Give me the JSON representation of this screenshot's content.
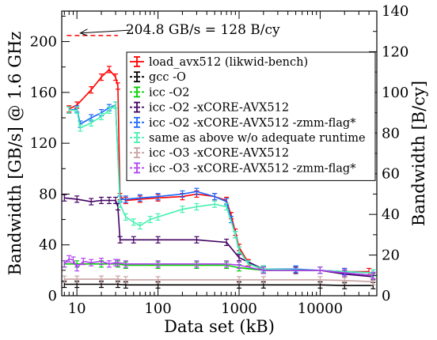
{
  "chart_data": {
    "type": "line",
    "xlabel": "Data set (kB)",
    "ylabel_left": "Bandwidth [GB/s] @ 1.6 GHz",
    "ylabel_right": "Bandwidth [B/cy]",
    "x_scale": "log",
    "xlim": [
      6.5,
      50000
    ],
    "ylim_left": [
      0,
      224
    ],
    "ylim_right": [
      0,
      140
    ],
    "x_ticks": [
      10,
      100,
      1000,
      10000
    ],
    "x_tick_labels": [
      "10",
      "100",
      "1000",
      "10000"
    ],
    "y_left_ticks": [
      0,
      40,
      80,
      120,
      160,
      200
    ],
    "y_left_tick_labels": [
      "0",
      "40",
      "80",
      "120",
      "160",
      "200"
    ],
    "y_right_ticks": [
      0,
      20,
      40,
      60,
      80,
      100,
      120,
      140
    ],
    "y_right_tick_labels": [
      "0",
      "20",
      "40",
      "60",
      "80",
      "100",
      "120",
      "140"
    ],
    "grid": false,
    "legend_position": "top-right",
    "annotation": {
      "text": "204.8 GB/s = 128 B/cy",
      "value": 204.8,
      "x_from": 7.5,
      "x_to": 32,
      "arrow_to": [
        11,
        204.8
      ]
    },
    "series": [
      {
        "name": "load_avx512 (likwid-bench)",
        "color": "#ff0000",
        "marker": "errorbar",
        "x": [
          8,
          10,
          15,
          20,
          25,
          30,
          32,
          34,
          40,
          60,
          100,
          200,
          300,
          500,
          700,
          800,
          900,
          1000,
          1300,
          2000,
          5000,
          10000,
          20000,
          40000
        ],
        "y": [
          147,
          150,
          162,
          172,
          178,
          172,
          165,
          78,
          75,
          76,
          77,
          78,
          80,
          78,
          75,
          63,
          50,
          38,
          26,
          20,
          20,
          20,
          19,
          19
        ]
      },
      {
        "name": "gcc -O",
        "color": "#000000",
        "marker": "errorbar",
        "x": [
          7,
          10,
          20,
          32,
          40,
          100,
          1000,
          2000,
          10000,
          20000,
          45000
        ],
        "y": [
          9,
          9,
          9,
          9,
          8.5,
          8.5,
          8.5,
          8.5,
          8.5,
          8,
          8
        ]
      },
      {
        "name": "icc -O2",
        "color": "#00cc00",
        "marker": "errorbar",
        "x": [
          7,
          10,
          20,
          32,
          40,
          100,
          300,
          700,
          1000,
          2000,
          10000,
          20000,
          45000
        ],
        "y": [
          25,
          25,
          25,
          25,
          24,
          24,
          24,
          24,
          22,
          20,
          20,
          18,
          16
        ]
      },
      {
        "name": "icc -O2 -xCORE-AVX512",
        "color": "#400060",
        "marker": "errorbar",
        "x": [
          7,
          10,
          15,
          20,
          25,
          30,
          32,
          34,
          50,
          100,
          300,
          700,
          1000,
          2000,
          5000,
          10000,
          20000,
          45000
        ],
        "y": [
          77,
          76,
          74,
          75,
          75,
          75,
          70,
          44,
          44,
          44,
          44,
          42,
          30,
          21,
          20,
          20,
          17,
          15
        ]
      },
      {
        "name": "icc -O2 -xCORE-AVX512 -zmm-flag*",
        "color": "#1a66ff",
        "marker": "errorbar",
        "x": [
          8,
          10,
          11,
          15,
          20,
          25,
          30,
          34,
          40,
          60,
          100,
          200,
          300,
          500,
          700,
          800,
          900,
          1000,
          1300,
          2000,
          5000,
          10000,
          20000,
          45000
        ],
        "y": [
          146,
          147,
          135,
          140,
          144,
          148,
          150,
          76,
          76,
          77,
          78,
          80,
          82,
          78,
          74,
          60,
          48,
          36,
          25,
          21,
          21,
          20,
          19,
          18
        ]
      },
      {
        "name": "same as above w/o adequate runtime",
        "color": "#44f0b0",
        "marker": "errorbar",
        "x": [
          8,
          10,
          11,
          15,
          20,
          25,
          30,
          34,
          40,
          50,
          60,
          80,
          100,
          200,
          300,
          500,
          700,
          900,
          1000,
          1300,
          2000,
          10000,
          45000
        ],
        "y": [
          146,
          146,
          132,
          136,
          141,
          146,
          150,
          72,
          62,
          58,
          55,
          60,
          62,
          68,
          70,
          72,
          70,
          48,
          36,
          25,
          21,
          20,
          18
        ]
      },
      {
        "name": "icc -O3 -xCORE-AVX512",
        "color": "#c8a0a0",
        "marker": "errorbar",
        "x": [
          7,
          10,
          20,
          32,
          40,
          100,
          1000,
          2000,
          10000,
          20000,
          45000
        ],
        "y": [
          13,
          13,
          13,
          13,
          12.5,
          12.5,
          12.5,
          12.5,
          12.5,
          12,
          11
        ]
      },
      {
        "name": "icc -O3 -xCORE-AVX512 -zmm-flag*",
        "color": "#b040f0",
        "marker": "errorbar",
        "x": [
          7,
          8,
          9,
          10,
          12,
          15,
          20,
          25,
          30,
          32,
          40,
          100,
          300,
          700,
          1000,
          2000,
          10000,
          20000,
          45000
        ],
        "y": [
          25,
          29,
          28,
          22,
          27,
          26,
          27,
          25,
          26,
          26,
          25,
          25,
          25,
          25,
          24,
          20,
          20,
          18,
          16
        ]
      }
    ]
  }
}
